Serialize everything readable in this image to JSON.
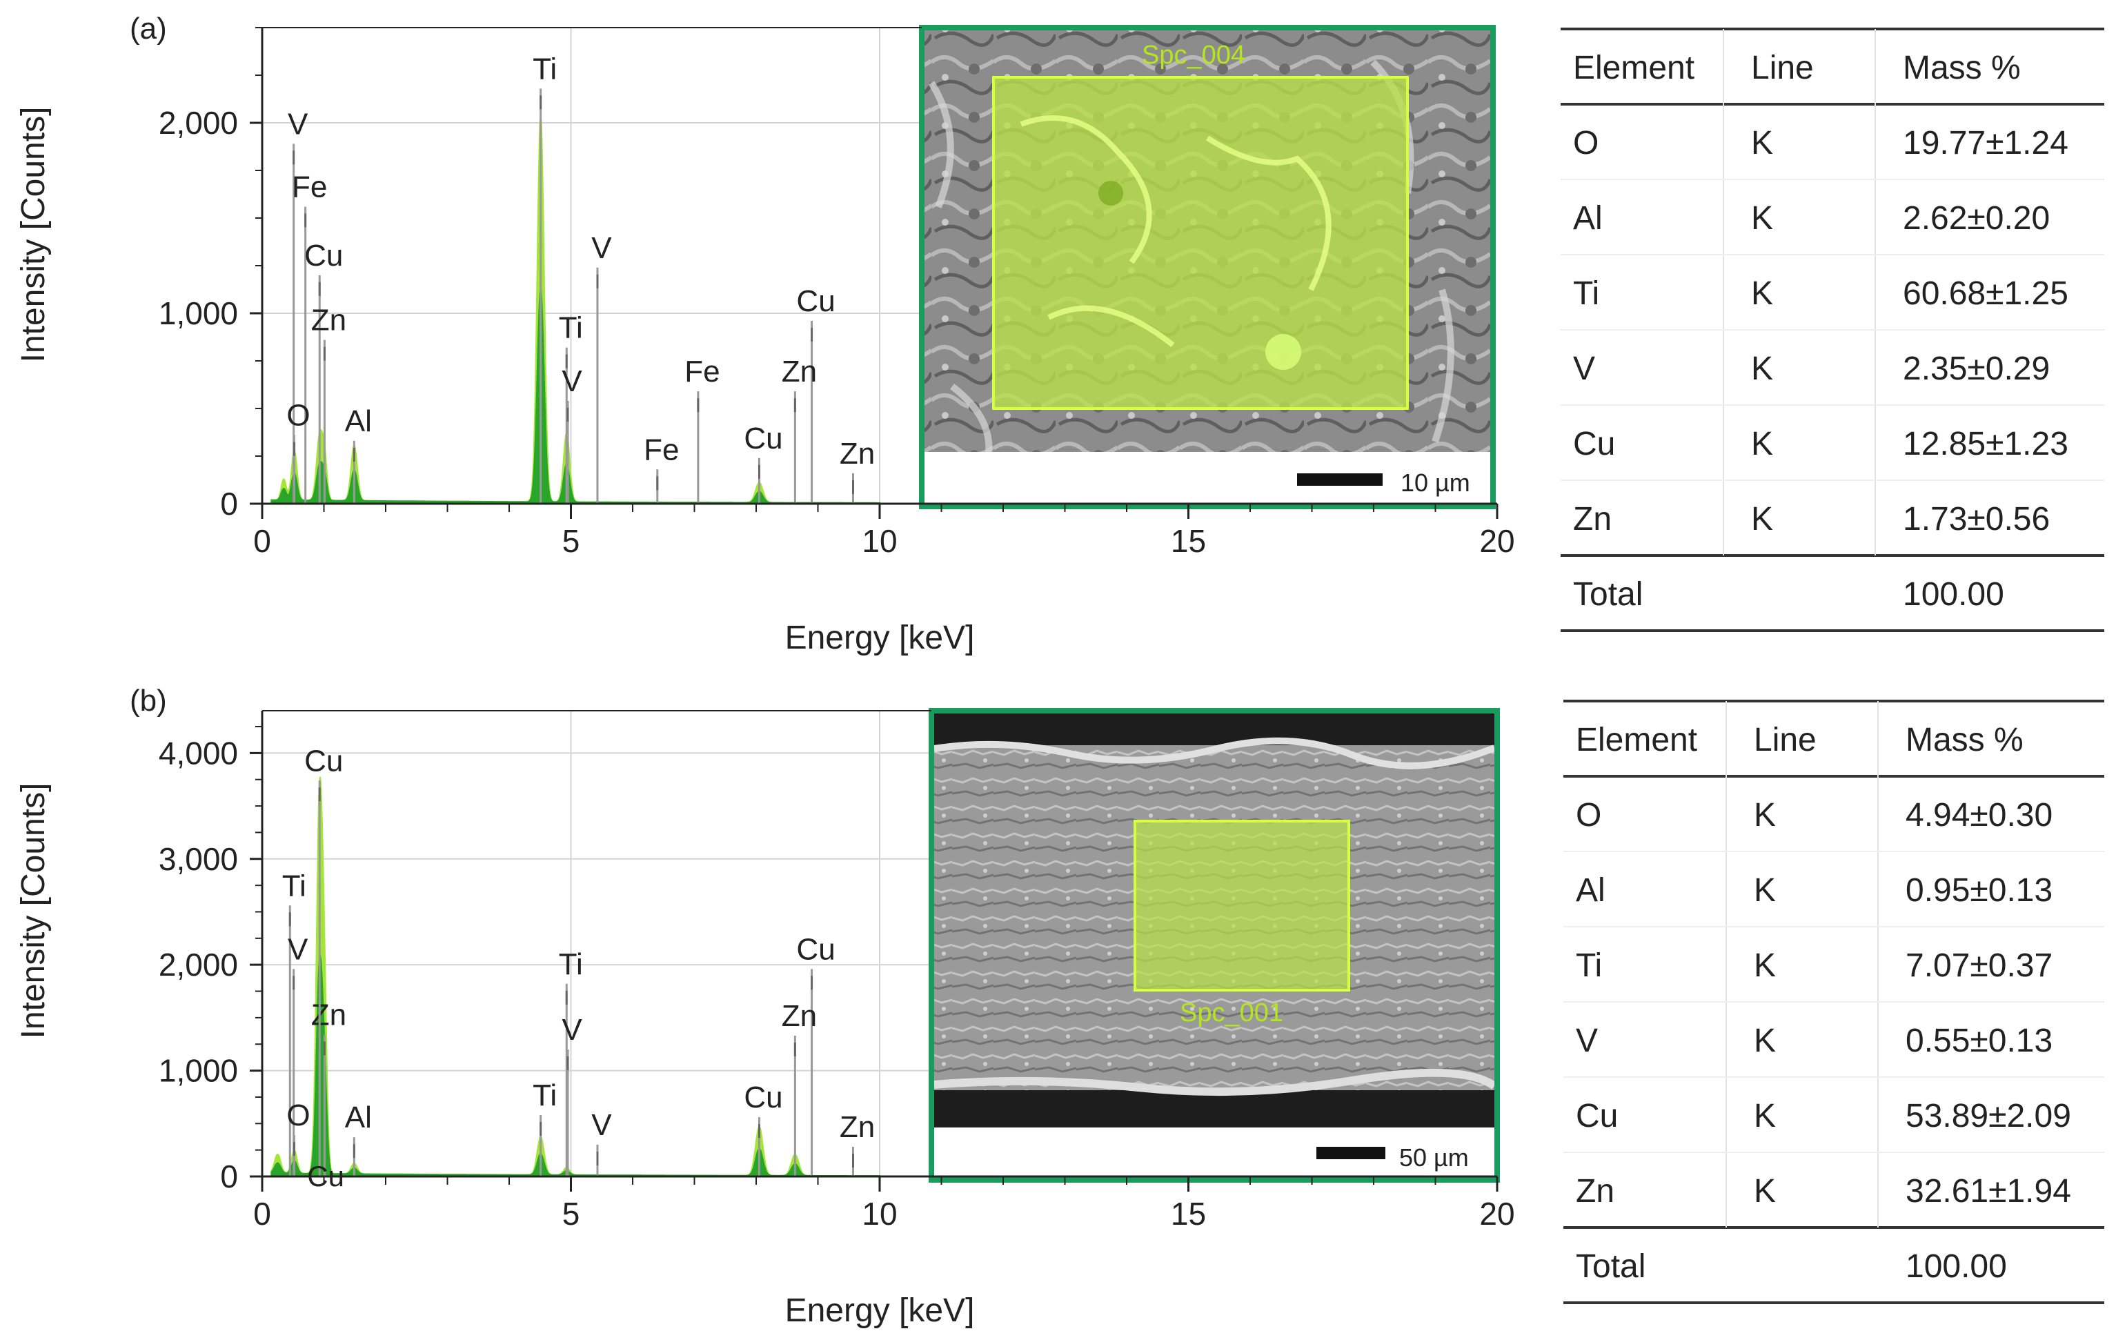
{
  "chart_data": [
    {
      "type": "line",
      "panel_label": "(a)",
      "title": "",
      "xlabel": "Energy [keV]",
      "ylabel": "Intensity [Counts]",
      "xlim": [
        0,
        20
      ],
      "ylim": [
        0,
        2500
      ],
      "xticks": [
        0,
        5,
        10,
        15,
        20
      ],
      "xtick_labels": [
        "0",
        "5",
        "10",
        "15",
        "20"
      ],
      "yticks": [
        0,
        1000,
        2000
      ],
      "ytick_labels": [
        "0",
        "1,000",
        "2,000"
      ],
      "grid": true,
      "spectrum": {
        "baseline": 20,
        "peaks": [
          {
            "x": 0.35,
            "y": 110,
            "w": 0.04
          },
          {
            "x": 0.52,
            "y": 260,
            "w": 0.045
          },
          {
            "x": 0.93,
            "y": 330,
            "w": 0.05
          },
          {
            "x": 1.01,
            "y": 200,
            "w": 0.04
          },
          {
            "x": 1.49,
            "y": 290,
            "w": 0.05
          },
          {
            "x": 4.51,
            "y": 2030,
            "w": 0.055
          },
          {
            "x": 4.93,
            "y": 360,
            "w": 0.05
          },
          {
            "x": 8.05,
            "y": 105,
            "w": 0.06
          }
        ]
      },
      "peak_markers": [
        {
          "label": "V",
          "x": 0.51,
          "top": 1890,
          "mark": 220
        },
        {
          "label": "Fe",
          "x": 0.7,
          "top": 1560,
          "mark": 160
        },
        {
          "label": "Cu",
          "x": 0.93,
          "top": 1200,
          "mark": 360
        },
        {
          "label": "Zn",
          "x": 1.01,
          "top": 860,
          "mark": 230
        },
        {
          "label": "O",
          "x": 0.52,
          "top": 360,
          "mark": 280
        },
        {
          "label": "Al",
          "x": 1.49,
          "top": 330,
          "mark": 270
        },
        {
          "label": "Ti",
          "x": 4.51,
          "top": 2180,
          "mark": 2130
        },
        {
          "label": "Ti",
          "x": 4.93,
          "top": 820,
          "mark": 700
        },
        {
          "label": "V",
          "x": 4.95,
          "top": 540,
          "mark": 420
        },
        {
          "label": "V",
          "x": 5.43,
          "top": 1240,
          "mark": 60
        },
        {
          "label": "Fe",
          "x": 6.4,
          "top": 180,
          "mark": 140
        },
        {
          "label": "Fe",
          "x": 7.06,
          "top": 590,
          "mark": 60
        },
        {
          "label": "Cu",
          "x": 8.05,
          "top": 240,
          "mark": 210
        },
        {
          "label": "Cu",
          "x": 8.9,
          "top": 960,
          "mark": 60
        },
        {
          "label": "Zn",
          "x": 8.63,
          "top": 590,
          "mark": 60
        },
        {
          "label": "Zn",
          "x": 9.57,
          "top": 160,
          "mark": 130
        }
      ],
      "inset": {
        "region_label": "Spc_004",
        "scale_bar_label": "10 µm"
      }
    },
    {
      "type": "line",
      "panel_label": "(b)",
      "title": "",
      "xlabel": "Energy [keV]",
      "ylabel": "Intensity [Counts]",
      "xlim": [
        0,
        20
      ],
      "ylim": [
        0,
        4400
      ],
      "xticks": [
        0,
        5,
        10,
        15,
        20
      ],
      "xtick_labels": [
        "0",
        "5",
        "10",
        "15",
        "20"
      ],
      "yticks": [
        0,
        1000,
        2000,
        3000,
        4000
      ],
      "ytick_labels": [
        "0",
        "1,000",
        "2,000",
        "3,000",
        "4,000"
      ],
      "grid": true,
      "spectrum": {
        "baseline": 30,
        "peaks": [
          {
            "x": 0.25,
            "y": 180,
            "w": 0.05
          },
          {
            "x": 0.52,
            "y": 220,
            "w": 0.045
          },
          {
            "x": 0.93,
            "y": 3550,
            "w": 0.05
          },
          {
            "x": 1.01,
            "y": 1250,
            "w": 0.04
          },
          {
            "x": 1.49,
            "y": 100,
            "w": 0.05
          },
          {
            "x": 4.51,
            "y": 360,
            "w": 0.055
          },
          {
            "x": 4.93,
            "y": 70,
            "w": 0.05
          },
          {
            "x": 8.05,
            "y": 460,
            "w": 0.06
          },
          {
            "x": 8.63,
            "y": 200,
            "w": 0.06
          }
        ]
      },
      "peak_markers": [
        {
          "label": "Ti",
          "x": 0.45,
          "top": 2560,
          "mark": 180
        },
        {
          "label": "V",
          "x": 0.51,
          "top": 1960,
          "mark": 180
        },
        {
          "label": "Zn",
          "x": 1.01,
          "top": 1340,
          "mark": 1300
        },
        {
          "label": "O",
          "x": 0.52,
          "top": 390,
          "mark": 250
        },
        {
          "label": "Cu",
          "x": 0.93,
          "top": 3740,
          "mark": 3620
        },
        {
          "label": "Cu",
          "x": 0.93,
          "top": -50,
          "mark": -50
        },
        {
          "label": "Al",
          "x": 1.49,
          "top": 370,
          "mark": 320
        },
        {
          "label": "Ti",
          "x": 4.51,
          "top": 580,
          "mark": 450
        },
        {
          "label": "Ti",
          "x": 4.93,
          "top": 1820,
          "mark": 90
        },
        {
          "label": "V",
          "x": 4.95,
          "top": 1200,
          "mark": 90
        },
        {
          "label": "V",
          "x": 5.43,
          "top": 300,
          "mark": 220
        },
        {
          "label": "Cu",
          "x": 8.05,
          "top": 560,
          "mark": 500
        },
        {
          "label": "Cu",
          "x": 8.9,
          "top": 1960,
          "mark": 60
        },
        {
          "label": "Zn",
          "x": 8.63,
          "top": 1330,
          "mark": 60
        },
        {
          "label": "Zn",
          "x": 9.57,
          "top": 280,
          "mark": 240
        }
      ],
      "inset": {
        "region_label": "Spc_001",
        "scale_bar_label": "50 µm"
      }
    }
  ],
  "tables": [
    {
      "headers": [
        "Element",
        "Line",
        "Mass %"
      ],
      "rows": [
        [
          "O",
          "K",
          "19.77±1.24"
        ],
        [
          "Al",
          "K",
          "2.62±0.20"
        ],
        [
          "Ti",
          "K",
          "60.68±1.25"
        ],
        [
          "V",
          "K",
          "2.35±0.29"
        ],
        [
          "Cu",
          "K",
          "12.85±1.23"
        ],
        [
          "Zn",
          "K",
          "1.73±0.56"
        ]
      ],
      "total": [
        "Total",
        "",
        "100.00"
      ]
    },
    {
      "headers": [
        "Element",
        "Line",
        "Mass %"
      ],
      "rows": [
        [
          "O",
          "K",
          "4.94±0.30"
        ],
        [
          "Al",
          "K",
          "0.95±0.13"
        ],
        [
          "Ti",
          "K",
          "7.07±0.37"
        ],
        [
          "V",
          "K",
          "0.55±0.13"
        ],
        [
          "Cu",
          "K",
          "53.89±2.09"
        ],
        [
          "Zn",
          "K",
          "32.61±1.94"
        ]
      ],
      "total": [
        "Total",
        "",
        "100.00"
      ]
    }
  ],
  "colors": {
    "spectrum_light": "#a3e635",
    "spectrum_dark": "#1e9e2a",
    "inset_border": "#1a9c5e",
    "region_fill": "#b8e04a",
    "region_text": "#b5e61d",
    "axis": "#222222",
    "grid": "#d4d4d4",
    "marker": "#999999"
  }
}
